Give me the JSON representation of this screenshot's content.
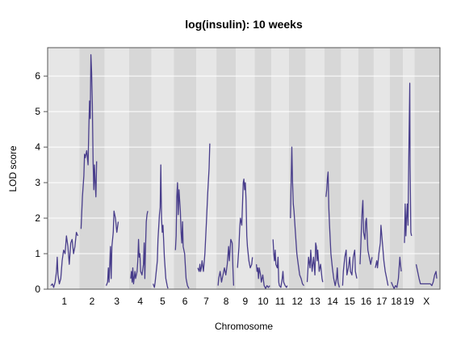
{
  "chart_data": {
    "type": "line",
    "title": "log(insulin): 10 weeks",
    "xlabel": "Chromosome",
    "ylabel": "LOD score",
    "ylim": [
      0,
      6.8
    ],
    "yticks": [
      0,
      1,
      2,
      3,
      4,
      5,
      6
    ],
    "grid": true,
    "colors": {
      "line": "#483d8b",
      "band_light": "#e6e6e6",
      "band_dark": "#d7d7d7",
      "gridline": "#ffffff"
    },
    "chromosomes": [
      {
        "label": "1",
        "length": 38
      },
      {
        "label": "2",
        "length": 31
      },
      {
        "label": "3",
        "length": 30
      },
      {
        "label": "4",
        "length": 27
      },
      {
        "label": "5",
        "length": 27
      },
      {
        "label": "6",
        "length": 27
      },
      {
        "label": "7",
        "length": 24
      },
      {
        "label": "8",
        "length": 23
      },
      {
        "label": "9",
        "length": 22
      },
      {
        "label": "10",
        "length": 19
      },
      {
        "label": "11",
        "length": 20
      },
      {
        "label": "12",
        "length": 19
      },
      {
        "label": "13",
        "length": 22
      },
      {
        "label": "14",
        "length": 19
      },
      {
        "label": "15",
        "length": 20
      },
      {
        "label": "16",
        "length": 17
      },
      {
        "label": "17",
        "length": 18
      },
      {
        "label": "18",
        "length": 14
      },
      {
        "label": "19",
        "length": 12
      },
      {
        "label": "X",
        "length": 29
      }
    ],
    "series": [
      {
        "chr": "1",
        "points": [
          [
            0,
            0.1
          ],
          [
            2,
            0.15
          ],
          [
            4,
            0.05
          ],
          [
            6,
            0.2
          ],
          [
            8,
            0.5
          ],
          [
            9,
            0.9
          ],
          [
            10,
            0.4
          ],
          [
            12,
            0.15
          ],
          [
            14,
            0.3
          ],
          [
            16,
            0.8
          ],
          [
            18,
            1.1
          ],
          [
            20,
            1.0
          ],
          [
            22,
            1.5
          ],
          [
            24,
            1.2
          ],
          [
            26,
            0.7
          ],
          [
            28,
            1.3
          ],
          [
            30,
            1.4
          ],
          [
            32,
            1.0
          ],
          [
            34,
            1.2
          ],
          [
            36,
            1.6
          ],
          [
            38,
            1.5
          ]
        ]
      },
      {
        "chr": "2",
        "points": [
          [
            0,
            1.7
          ],
          [
            2,
            2.6
          ],
          [
            4,
            3.2
          ],
          [
            5,
            3.8
          ],
          [
            6,
            3.7
          ],
          [
            8,
            3.9
          ],
          [
            10,
            3.5
          ],
          [
            11,
            4.5
          ],
          [
            12,
            5.3
          ],
          [
            13,
            4.8
          ],
          [
            14,
            6.6
          ],
          [
            15,
            6.1
          ],
          [
            16,
            5.2
          ],
          [
            17,
            3.6
          ],
          [
            18,
            2.8
          ],
          [
            19,
            3.5
          ],
          [
            20,
            3.0
          ],
          [
            21,
            2.6
          ],
          [
            22,
            3.6
          ]
        ]
      },
      {
        "chr": "3",
        "points": [
          [
            0,
            0.1
          ],
          [
            2,
            0.2
          ],
          [
            3,
            0.6
          ],
          [
            4,
            0.2
          ],
          [
            6,
            1.2
          ],
          [
            7,
            0.3
          ],
          [
            8,
            1.2
          ],
          [
            10,
            1.6
          ],
          [
            11,
            2.2
          ],
          [
            13,
            2.0
          ],
          [
            15,
            1.6
          ],
          [
            17,
            1.9
          ]
        ]
      },
      {
        "chr": "4",
        "points": [
          [
            0,
            0.3
          ],
          [
            1,
            0.5
          ],
          [
            2,
            0.2
          ],
          [
            3,
            0.6
          ],
          [
            4,
            0.15
          ],
          [
            6,
            0.5
          ],
          [
            7,
            0.3
          ],
          [
            9,
            0.5
          ],
          [
            10,
            0.8
          ],
          [
            11,
            1.4
          ],
          [
            12,
            0.9
          ],
          [
            13,
            1.0
          ],
          [
            14,
            0.5
          ],
          [
            16,
            0.4
          ],
          [
            18,
            0.7
          ],
          [
            19,
            1.3
          ],
          [
            20,
            0.3
          ],
          [
            21,
            1.2
          ],
          [
            22,
            1.9
          ],
          [
            23,
            2.1
          ],
          [
            24,
            2.2
          ]
        ]
      },
      {
        "chr": "5",
        "points": [
          [
            0,
            0.15
          ],
          [
            2,
            0.05
          ],
          [
            3,
            0.2
          ],
          [
            4,
            0.4
          ],
          [
            6,
            0.8
          ],
          [
            7,
            1.4
          ],
          [
            9,
            2.1
          ],
          [
            10,
            2.3
          ],
          [
            11,
            3.5
          ],
          [
            12,
            2.0
          ],
          [
            13,
            1.6
          ],
          [
            14,
            1.8
          ],
          [
            16,
            0.9
          ],
          [
            18,
            0.3
          ],
          [
            20,
            0.1
          ],
          [
            21,
            0.02
          ]
        ]
      },
      {
        "chr": "6",
        "points": [
          [
            0,
            1.1
          ],
          [
            1,
            1.5
          ],
          [
            2,
            2.6
          ],
          [
            3,
            3.0
          ],
          [
            4,
            2.1
          ],
          [
            5,
            2.8
          ],
          [
            7,
            2.2
          ],
          [
            8,
            1.6
          ],
          [
            9,
            1.3
          ],
          [
            10,
            1.9
          ],
          [
            11,
            1.2
          ],
          [
            13,
            1.0
          ],
          [
            15,
            0.3
          ],
          [
            17,
            0.1
          ],
          [
            19,
            0.02
          ]
        ]
      },
      {
        "chr": "7",
        "points": [
          [
            0,
            0.6
          ],
          [
            2,
            0.5
          ],
          [
            3,
            0.7
          ],
          [
            4,
            0.5
          ],
          [
            5,
            0.6
          ],
          [
            6,
            0.8
          ],
          [
            8,
            0.5
          ],
          [
            10,
            1.0
          ],
          [
            12,
            1.8
          ],
          [
            14,
            2.7
          ],
          [
            16,
            3.4
          ],
          [
            17,
            4.1
          ]
        ]
      },
      {
        "chr": "8",
        "points": [
          [
            0,
            0.1
          ],
          [
            1,
            0.3
          ],
          [
            3,
            0.5
          ],
          [
            5,
            0.2
          ],
          [
            7,
            0.4
          ],
          [
            9,
            0.6
          ],
          [
            11,
            0.4
          ],
          [
            13,
            0.7
          ],
          [
            15,
            1.2
          ],
          [
            16,
            0.8
          ],
          [
            18,
            1.4
          ],
          [
            20,
            1.3
          ],
          [
            21,
            0.6
          ],
          [
            22,
            0.1
          ]
        ]
      },
      {
        "chr": "9",
        "points": [
          [
            0,
            0.6
          ],
          [
            2,
            1.2
          ],
          [
            3,
            1.7
          ],
          [
            4,
            2.0
          ],
          [
            6,
            1.8
          ],
          [
            7,
            2.4
          ],
          [
            8,
            3.0
          ],
          [
            9,
            3.1
          ],
          [
            10,
            2.8
          ],
          [
            11,
            3.0
          ],
          [
            12,
            2.5
          ],
          [
            13,
            1.5
          ],
          [
            14,
            1.2
          ],
          [
            16,
            0.8
          ],
          [
            18,
            0.6
          ],
          [
            20,
            0.7
          ],
          [
            21,
            0.9
          ]
        ]
      },
      {
        "chr": "10",
        "points": [
          [
            0,
            0.7
          ],
          [
            1,
            0.5
          ],
          [
            2,
            0.6
          ],
          [
            3,
            0.3
          ],
          [
            4,
            0.6
          ],
          [
            6,
            0.4
          ],
          [
            7,
            0.2
          ],
          [
            9,
            0.4
          ],
          [
            11,
            0.1
          ],
          [
            13,
            0.02
          ],
          [
            15,
            0.1
          ],
          [
            17,
            0.05
          ],
          [
            19,
            0.1
          ]
        ]
      },
      {
        "chr": "11",
        "points": [
          [
            0,
            1.4
          ],
          [
            1,
            1.0
          ],
          [
            2,
            0.8
          ],
          [
            3,
            1.1
          ],
          [
            4,
            0.7
          ],
          [
            6,
            0.6
          ],
          [
            7,
            0.9
          ],
          [
            8,
            0.2
          ],
          [
            9,
            0.1
          ],
          [
            11,
            0.05
          ],
          [
            13,
            0.3
          ],
          [
            14,
            0.5
          ],
          [
            15,
            0.2
          ],
          [
            17,
            0.1
          ],
          [
            19,
            0.05
          ],
          [
            20,
            0.1
          ]
        ]
      },
      {
        "chr": "12",
        "points": [
          [
            0,
            2.0
          ],
          [
            1,
            3.1
          ],
          [
            2,
            4.0
          ],
          [
            3,
            3.0
          ],
          [
            4,
            2.4
          ],
          [
            5,
            2.2
          ],
          [
            7,
            1.6
          ],
          [
            9,
            1.0
          ],
          [
            11,
            0.7
          ],
          [
            13,
            0.4
          ],
          [
            15,
            0.3
          ],
          [
            17,
            0.15
          ],
          [
            19,
            0.1
          ]
        ]
      },
      {
        "chr": "13",
        "points": [
          [
            0,
            0.2
          ],
          [
            1,
            0.5
          ],
          [
            2,
            0.9
          ],
          [
            4,
            0.6
          ],
          [
            5,
            1.1
          ],
          [
            7,
            0.5
          ],
          [
            9,
            0.9
          ],
          [
            11,
            0.4
          ],
          [
            12,
            1.3
          ],
          [
            13,
            1.2
          ],
          [
            14,
            0.8
          ],
          [
            15,
            1.1
          ],
          [
            17,
            0.5
          ],
          [
            19,
            0.7
          ],
          [
            21,
            0.3
          ],
          [
            22,
            0.2
          ]
        ]
      },
      {
        "chr": "14",
        "points": [
          [
            0,
            2.6
          ],
          [
            1,
            2.8
          ],
          [
            2,
            3.1
          ],
          [
            3,
            3.3
          ],
          [
            4,
            2.3
          ],
          [
            5,
            1.8
          ],
          [
            7,
            1.0
          ],
          [
            9,
            0.6
          ],
          [
            11,
            0.3
          ],
          [
            13,
            0.1
          ],
          [
            15,
            0.3
          ],
          [
            16,
            0.6
          ],
          [
            17,
            0.2
          ],
          [
            19,
            0.05
          ]
        ]
      },
      {
        "chr": "15",
        "points": [
          [
            0,
            0.1
          ],
          [
            1,
            0.5
          ],
          [
            3,
            0.9
          ],
          [
            5,
            1.1
          ],
          [
            6,
            0.4
          ],
          [
            8,
            0.6
          ],
          [
            10,
            0.9
          ],
          [
            11,
            0.5
          ],
          [
            13,
            0.4
          ],
          [
            15,
            0.9
          ],
          [
            17,
            1.1
          ],
          [
            18,
            0.5
          ],
          [
            20,
            0.3
          ]
        ]
      },
      {
        "chr": "16",
        "points": [
          [
            0,
            0.7
          ],
          [
            1,
            1.2
          ],
          [
            2,
            1.8
          ],
          [
            3,
            2.2
          ],
          [
            4,
            2.5
          ],
          [
            5,
            1.6
          ],
          [
            7,
            1.4
          ],
          [
            8,
            1.9
          ],
          [
            9,
            2.0
          ],
          [
            10,
            1.5
          ],
          [
            11,
            1.1
          ],
          [
            13,
            0.9
          ],
          [
            15,
            0.7
          ],
          [
            17,
            0.9
          ]
        ]
      },
      {
        "chr": "17",
        "points": [
          [
            0,
            0.6
          ],
          [
            2,
            0.8
          ],
          [
            3,
            0.6
          ],
          [
            5,
            1.0
          ],
          [
            7,
            1.3
          ],
          [
            8,
            1.8
          ],
          [
            10,
            1.3
          ],
          [
            12,
            0.8
          ],
          [
            14,
            0.5
          ],
          [
            16,
            0.3
          ],
          [
            18,
            0.1
          ]
        ]
      },
      {
        "chr": "18",
        "points": [
          [
            0,
            0.2
          ],
          [
            2,
            0.1
          ],
          [
            4,
            0.02
          ],
          [
            6,
            0.1
          ],
          [
            8,
            0.05
          ],
          [
            10,
            0.3
          ],
          [
            11,
            0.6
          ],
          [
            12,
            0.9
          ],
          [
            13,
            0.7
          ],
          [
            14,
            0.5
          ]
        ]
      },
      {
        "chr": "19",
        "points": [
          [
            0,
            1.3
          ],
          [
            1,
            2.4
          ],
          [
            2,
            1.5
          ],
          [
            3,
            2.0
          ],
          [
            4,
            2.4
          ],
          [
            5,
            1.8
          ],
          [
            6,
            3.6
          ],
          [
            7,
            5.1
          ],
          [
            7.5,
            5.8
          ],
          [
            8,
            3.5
          ],
          [
            9,
            1.6
          ],
          [
            10,
            1.5
          ]
        ]
      },
      {
        "chr": "X",
        "points": [
          [
            0,
            0.7
          ],
          [
            2,
            0.5
          ],
          [
            4,
            0.3
          ],
          [
            6,
            0.15
          ],
          [
            8,
            0.15
          ],
          [
            12,
            0.15
          ],
          [
            16,
            0.15
          ],
          [
            20,
            0.15
          ],
          [
            22,
            0.1
          ],
          [
            24,
            0.2
          ],
          [
            26,
            0.4
          ],
          [
            28,
            0.5
          ],
          [
            29,
            0.3
          ]
        ]
      }
    ]
  }
}
